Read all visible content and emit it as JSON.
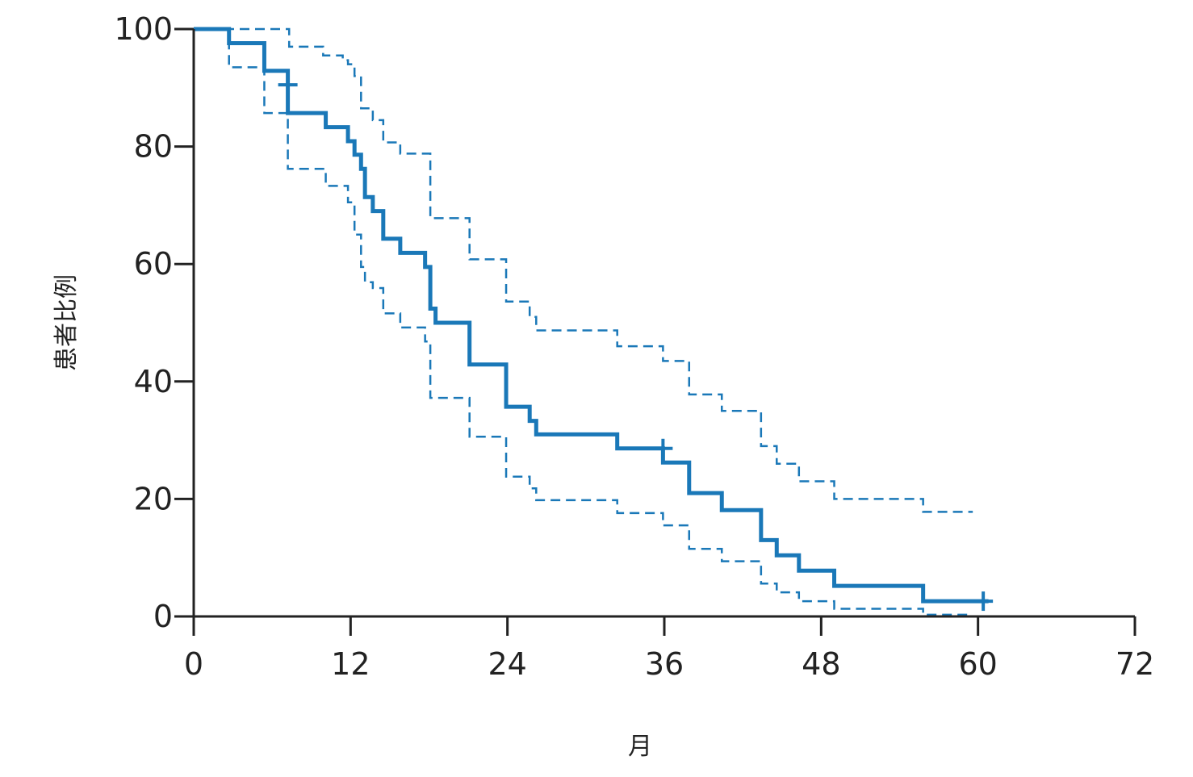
{
  "chart_data": {
    "type": "line",
    "subtype": "kaplan-meier-step",
    "xlabel": "月",
    "ylabel": "患者比例",
    "xlim": [
      0,
      72
    ],
    "ylim": [
      0,
      100
    ],
    "x_ticks": [
      0,
      12,
      24,
      36,
      48,
      60,
      72
    ],
    "y_ticks": [
      0,
      20,
      40,
      60,
      80,
      100
    ],
    "grid": false,
    "colors": {
      "series": "#1a78b8",
      "axis": "#222222"
    },
    "series": [
      {
        "role": "survival",
        "style": "solid",
        "points": [
          [
            0,
            100
          ],
          [
            2.7,
            97.6
          ],
          [
            5.4,
            92.9
          ],
          [
            7.2,
            85.7
          ],
          [
            10.1,
            83.3
          ],
          [
            11.8,
            80.9
          ],
          [
            12.3,
            78.6
          ],
          [
            12.8,
            76.2
          ],
          [
            13.1,
            71.4
          ],
          [
            13.7,
            69
          ],
          [
            14.5,
            64.3
          ],
          [
            15.8,
            61.9
          ],
          [
            17.7,
            59.5
          ],
          [
            18.1,
            52.4
          ],
          [
            18.5,
            50
          ],
          [
            21.1,
            42.9
          ],
          [
            23.9,
            35.7
          ],
          [
            25.7,
            33.3
          ],
          [
            26.2,
            31
          ],
          [
            32.4,
            28.6
          ],
          [
            35.9,
            26.2
          ],
          [
            37.9,
            21
          ],
          [
            40.4,
            18.1
          ],
          [
            43.4,
            13
          ],
          [
            44.6,
            10.4
          ],
          [
            46.3,
            7.8
          ],
          [
            49,
            5.2
          ],
          [
            55.8,
            2.6
          ],
          [
            60.8,
            2.6
          ]
        ]
      },
      {
        "role": "ci-upper",
        "style": "dashed",
        "points": [
          [
            0,
            100
          ],
          [
            7.3,
            97
          ],
          [
            9.9,
            95.5
          ],
          [
            11.4,
            94.7
          ],
          [
            11.8,
            94
          ],
          [
            12.3,
            92
          ],
          [
            12.8,
            86.5
          ],
          [
            13.7,
            84.5
          ],
          [
            14.5,
            80.7
          ],
          [
            15.8,
            78.8
          ],
          [
            18.1,
            67.8
          ],
          [
            21.1,
            60.8
          ],
          [
            23.9,
            53.6
          ],
          [
            25.7,
            51
          ],
          [
            26.2,
            48.7
          ],
          [
            32.4,
            46
          ],
          [
            35.9,
            43.5
          ],
          [
            37.9,
            37.8
          ],
          [
            40.4,
            35
          ],
          [
            43.4,
            29
          ],
          [
            44.6,
            26
          ],
          [
            46.3,
            23
          ],
          [
            49,
            20
          ],
          [
            55.8,
            17.8
          ],
          [
            59.6,
            17.8
          ]
        ]
      },
      {
        "role": "ci-lower",
        "style": "dashed",
        "points": [
          [
            0,
            100
          ],
          [
            2.7,
            93.5
          ],
          [
            5.4,
            85.7
          ],
          [
            7.2,
            76.2
          ],
          [
            10.1,
            73.3
          ],
          [
            11.8,
            70.5
          ],
          [
            12.3,
            65
          ],
          [
            12.8,
            59.5
          ],
          [
            13.1,
            56.9
          ],
          [
            13.7,
            55.9
          ],
          [
            14.5,
            51.6
          ],
          [
            15.8,
            49.2
          ],
          [
            17.7,
            46.8
          ],
          [
            18.1,
            37.2
          ],
          [
            21.1,
            30.6
          ],
          [
            23.9,
            23.8
          ],
          [
            25.7,
            21.8
          ],
          [
            26.2,
            19.8
          ],
          [
            32.4,
            17.6
          ],
          [
            35.9,
            15.5
          ],
          [
            37.9,
            11.5
          ],
          [
            40.4,
            9.4
          ],
          [
            43.4,
            5.6
          ],
          [
            44.6,
            4.1
          ],
          [
            46.3,
            2.6
          ],
          [
            49,
            1.3
          ],
          [
            55.8,
            0.3
          ],
          [
            59.6,
            0.3
          ]
        ]
      }
    ],
    "censor_marks": [
      [
        7.2,
        90.5
      ],
      [
        35.9,
        28.6
      ],
      [
        60.4,
        2.6
      ]
    ]
  }
}
